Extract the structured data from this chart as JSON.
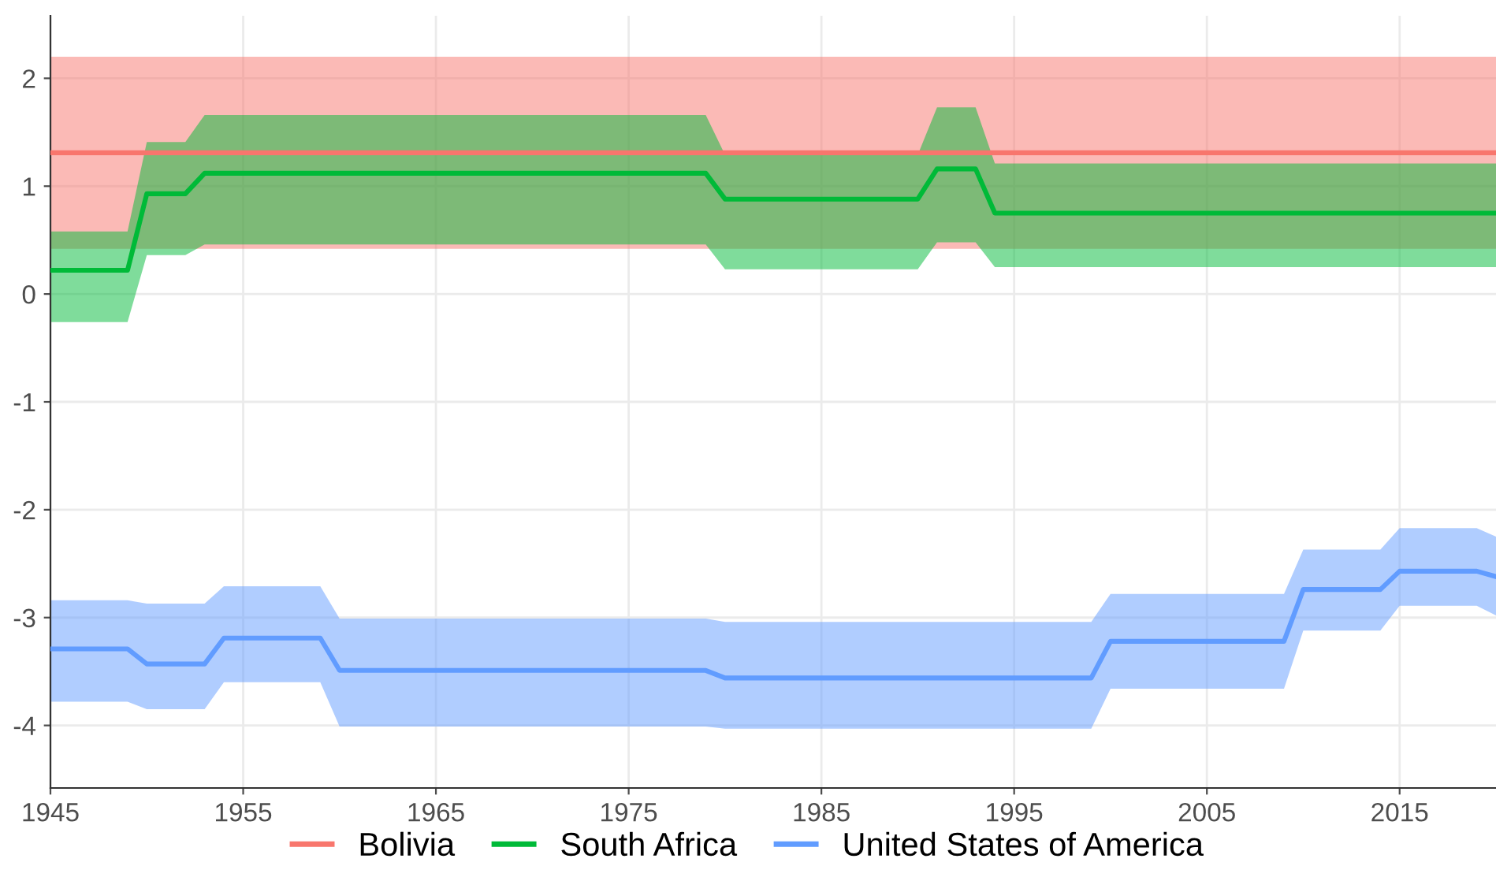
{
  "chart_data": {
    "type": "line",
    "xlim": [
      1945,
      2020
    ],
    "xticks": [
      1945,
      1955,
      1965,
      1975,
      1985,
      1995,
      2005,
      2015
    ],
    "ylim": [
      -4.58,
      2.58
    ],
    "yticks": [
      -4,
      -3,
      -2,
      -1,
      0,
      1,
      2
    ],
    "grid": true,
    "legend": "bottom",
    "line_style": "solid",
    "series": [
      {
        "name": "Bolivia",
        "color": "#f8766d",
        "x": [
          1945,
          2020
        ],
        "values": [
          1.31,
          1.31
        ],
        "lower": [
          0.42,
          0.42
        ],
        "upper": [
          2.2,
          2.2
        ]
      },
      {
        "name": "South Africa",
        "color": "#00ba38",
        "x": [
          1945,
          1949,
          1950,
          1952,
          1953,
          1979,
          1980,
          1990,
          1991,
          1993,
          1994,
          2020
        ],
        "values": [
          0.22,
          0.22,
          0.93,
          0.93,
          1.12,
          1.12,
          0.88,
          0.88,
          1.16,
          1.16,
          0.75,
          0.75
        ],
        "upper": [
          0.58,
          0.58,
          1.41,
          1.41,
          1.66,
          1.66,
          1.29,
          1.29,
          1.73,
          1.73,
          1.21,
          1.21
        ],
        "lower": [
          -0.26,
          -0.26,
          0.36,
          0.36,
          0.46,
          0.46,
          0.23,
          0.23,
          0.48,
          0.48,
          0.25,
          0.25
        ]
      },
      {
        "name": "United States of America",
        "color": "#619cff",
        "x": [
          1945,
          1949,
          1950,
          1953,
          1954,
          1959,
          1960,
          1979,
          1980,
          1999,
          2000,
          2009,
          2010,
          2014,
          2015,
          2019,
          2020
        ],
        "values": [
          -3.29,
          -3.29,
          -3.43,
          -3.43,
          -3.19,
          -3.19,
          -3.49,
          -3.49,
          -3.56,
          -3.56,
          -3.22,
          -3.22,
          -2.74,
          -2.74,
          -2.57,
          -2.57,
          -2.62
        ],
        "upper": [
          -2.84,
          -2.84,
          -2.87,
          -2.87,
          -2.71,
          -2.71,
          -3.01,
          -3.01,
          -3.04,
          -3.04,
          -2.78,
          -2.78,
          -2.37,
          -2.37,
          -2.17,
          -2.17,
          -2.25
        ],
        "lower": [
          -3.78,
          -3.78,
          -3.85,
          -3.85,
          -3.6,
          -3.6,
          -4.01,
          -4.01,
          -4.03,
          -4.03,
          -3.66,
          -3.66,
          -3.12,
          -3.12,
          -2.89,
          -2.89,
          -2.98
        ]
      }
    ]
  }
}
